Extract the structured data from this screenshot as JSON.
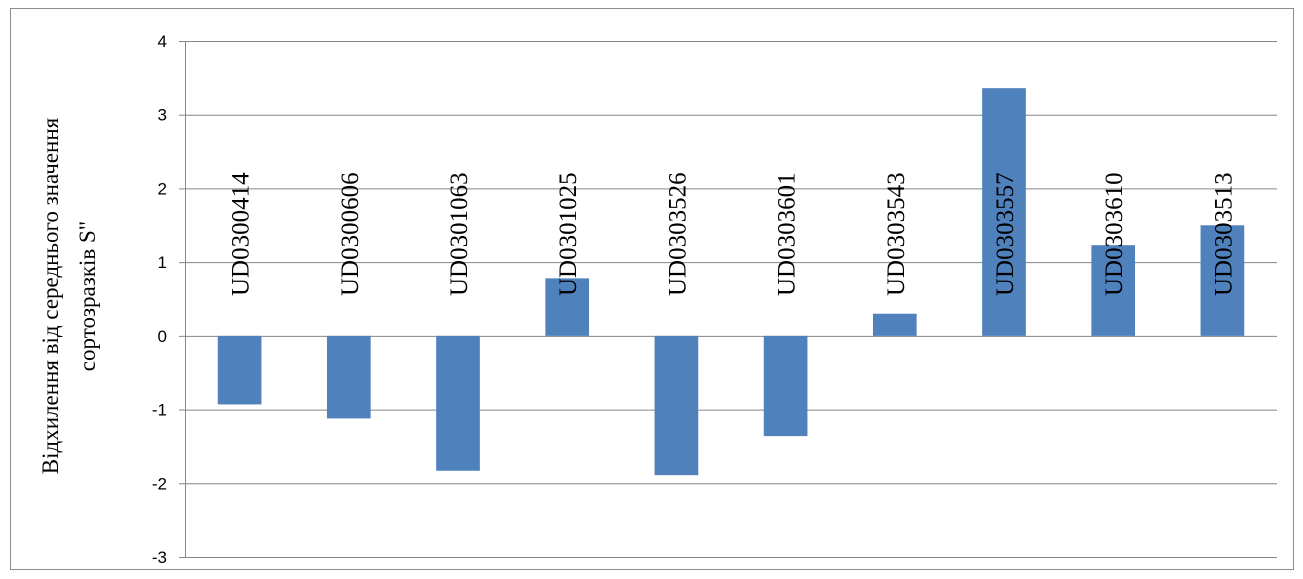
{
  "chart_data": {
    "type": "bar",
    "title": "",
    "xlabel": "",
    "ylabel_lines": [
      "Відхилення від середнього значення",
      "сортозразків  S\""
    ],
    "categories": [
      "UD0300414",
      "UD0300606",
      "UD0301063",
      "UD0301025",
      "UD0303526",
      "UD0303601",
      "UD0303543",
      "UD0303557",
      "UD0303610",
      "UD0303513"
    ],
    "series": [
      {
        "values": [
          -0.93,
          -1.12,
          -1.83,
          0.78,
          -1.89,
          -1.36,
          0.3,
          3.36,
          1.23,
          1.5
        ],
        "color": "#4f81bd"
      }
    ],
    "ylim": [
      -3,
      4
    ],
    "yticks": [
      4,
      3,
      2,
      1,
      0,
      -1,
      -2,
      -3
    ],
    "ytick_labels": [
      "4",
      "3",
      "2",
      "1",
      "0",
      "-1",
      "-2",
      "-3"
    ],
    "grid": true,
    "gridline_color": "#868686",
    "legend": "none"
  }
}
